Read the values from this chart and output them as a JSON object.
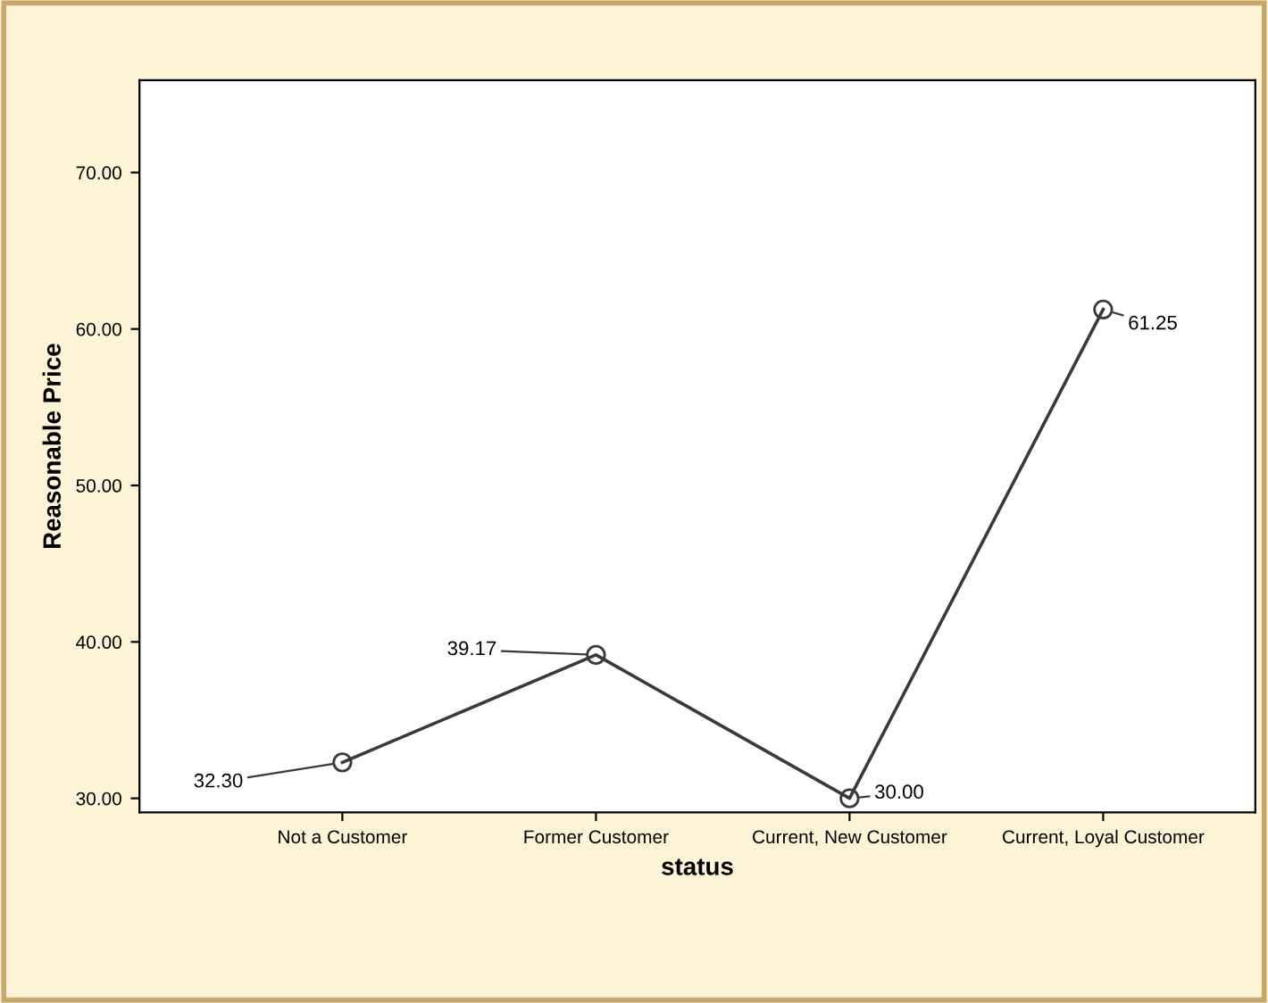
{
  "chart_data": {
    "type": "line",
    "xlabel": "status",
    "ylabel": "Reasonable Price",
    "categories": [
      "Not a Customer",
      "Former Customer",
      "Current, New Customer",
      "Current, Loyal Customer"
    ],
    "series": [
      {
        "color": "#3a3a3a",
        "values": [
          32.3,
          39.17,
          30.0,
          61.25
        ]
      }
    ],
    "value_labels": [
      "32.30",
      "39.17",
      "30.00",
      "61.25"
    ],
    "ylim": [
      29.1,
      75.9
    ],
    "yticks": [
      {
        "value": 30,
        "label": "30.00"
      },
      {
        "value": 40,
        "label": "40.00"
      },
      {
        "value": 50,
        "label": "50.00"
      },
      {
        "value": 60,
        "label": "60.00"
      },
      {
        "value": 70,
        "label": "70.00"
      }
    ],
    "marker": "circle",
    "line_style": "solid",
    "grid": false,
    "legend": false
  }
}
